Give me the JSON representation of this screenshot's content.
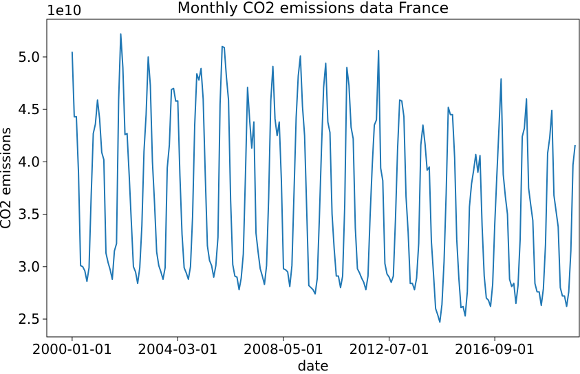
{
  "chart_data": {
    "type": "line",
    "title": "Monthly CO2 emissions data France",
    "xlabel": "date",
    "ylabel": "CO2 emissions",
    "y_offset_label": "1e10",
    "x_tick_labels": [
      "2000-01-01",
      "2004-03-01",
      "2008-05-01",
      "2012-07-01",
      "2016-09-01",
      ""
    ],
    "y_tick_labels": [
      "2.5",
      "3.0",
      "3.5",
      "4.0",
      "4.5",
      "5.0"
    ],
    "y_ticks": [
      2.5,
      3.0,
      3.5,
      4.0,
      4.5,
      5.0
    ],
    "ylim": [
      2.33,
      5.36
    ],
    "xlim_index": [
      -12,
      240
    ],
    "grid": false,
    "line_color": "#1f77b4",
    "series": [
      {
        "name": "",
        "start": "2000-01-01",
        "frequency": "monthly",
        "values": [
          5.05,
          4.43,
          4.43,
          3.9,
          3.01,
          3.0,
          2.96,
          2.86,
          2.99,
          3.67,
          4.27,
          4.36,
          4.59,
          4.41,
          4.09,
          4.02,
          3.13,
          3.04,
          2.97,
          2.88,
          3.15,
          3.22,
          4.59,
          5.22,
          4.9,
          4.26,
          4.27,
          3.87,
          3.43,
          3.0,
          2.95,
          2.84,
          2.99,
          3.39,
          4.1,
          4.45,
          5.0,
          4.73,
          4.0,
          3.6,
          3.14,
          3.01,
          2.95,
          2.88,
          2.99,
          3.94,
          4.16,
          4.69,
          4.7,
          4.58,
          4.58,
          3.87,
          3.31,
          2.99,
          2.94,
          2.88,
          3.0,
          3.48,
          4.35,
          4.84,
          4.78,
          4.89,
          4.6,
          3.87,
          3.2,
          3.06,
          3.01,
          2.9,
          3.01,
          3.28,
          4.55,
          5.1,
          5.09,
          4.81,
          4.59,
          3.63,
          3.02,
          2.91,
          2.9,
          2.78,
          2.89,
          3.12,
          3.86,
          4.71,
          4.4,
          4.13,
          4.38,
          3.32,
          3.14,
          2.98,
          2.91,
          2.83,
          3.01,
          3.66,
          4.58,
          4.91,
          4.41,
          4.25,
          4.38,
          3.83,
          2.98,
          2.97,
          2.95,
          2.81,
          3.01,
          3.71,
          4.42,
          4.82,
          5.01,
          4.53,
          4.25,
          3.54,
          2.82,
          2.8,
          2.78,
          2.74,
          2.89,
          3.47,
          4.13,
          4.71,
          4.94,
          4.38,
          4.28,
          3.5,
          3.17,
          2.91,
          2.91,
          2.8,
          2.91,
          3.59,
          4.9,
          4.73,
          4.33,
          4.22,
          3.37,
          2.98,
          2.94,
          2.89,
          2.85,
          2.78,
          2.91,
          3.48,
          3.96,
          4.35,
          4.4,
          5.06,
          3.94,
          3.82,
          3.03,
          2.93,
          2.9,
          2.85,
          2.91,
          3.45,
          4.12,
          4.59,
          4.58,
          4.43,
          3.67,
          3.33,
          2.84,
          2.84,
          2.78,
          2.89,
          3.22,
          4.16,
          4.35,
          4.17,
          3.92,
          3.95,
          3.24,
          2.93,
          2.6,
          2.54,
          2.47,
          2.64,
          3.05,
          3.7,
          4.52,
          4.45,
          4.45,
          4.04,
          3.26,
          2.89,
          2.61,
          2.62,
          2.53,
          2.76,
          3.57,
          3.79,
          3.92,
          4.07,
          3.9,
          4.06,
          3.39,
          2.91,
          2.7,
          2.68,
          2.62,
          2.83,
          3.41,
          3.88,
          4.33,
          4.79,
          3.88,
          3.67,
          3.5,
          2.88,
          2.81,
          2.84,
          2.65,
          2.82,
          3.26,
          4.24,
          4.32,
          4.6,
          3.75,
          3.59,
          3.44,
          2.84,
          2.76,
          2.76,
          2.63,
          2.79,
          3.21,
          4.08,
          4.23,
          4.49,
          3.68,
          3.53,
          3.38,
          2.8,
          2.72,
          2.72,
          2.62,
          2.76,
          3.15,
          3.97,
          4.16
        ]
      }
    ]
  }
}
